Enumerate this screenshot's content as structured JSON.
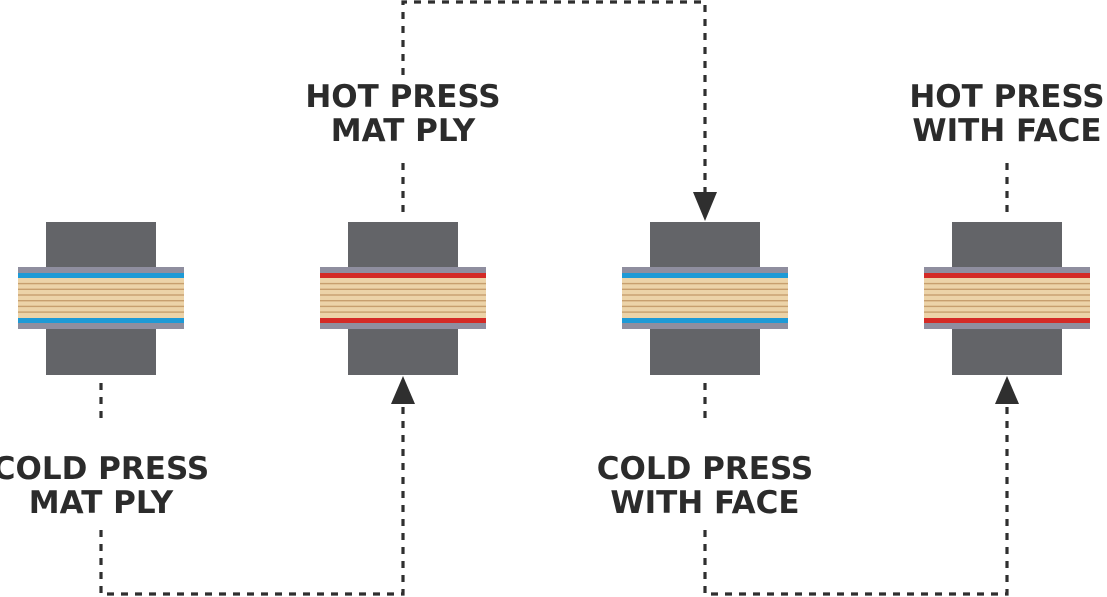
{
  "colors": {
    "die": "#636468",
    "caul": "#8f8e9f",
    "wood_light": "#ecd3a8",
    "wood_dark": "#c79f6e",
    "cold_film": "#1e9ad6",
    "hot_film": "#d42a26",
    "flow_line": "#2f2f2f"
  },
  "steps": [
    {
      "id": "cold-mat",
      "film": "cold",
      "label": [
        "COLD PRESS",
        "MAT PLY"
      ]
    },
    {
      "id": "hot-mat",
      "film": "hot",
      "label": [
        "HOT PRESS",
        "MAT PLY"
      ]
    },
    {
      "id": "cold-face",
      "film": "cold",
      "label": [
        "COLD PRESS",
        "WITH FACE"
      ]
    },
    {
      "id": "hot-face",
      "film": "hot",
      "label": [
        "HOT PRESS",
        "WITH FACE"
      ]
    }
  ]
}
